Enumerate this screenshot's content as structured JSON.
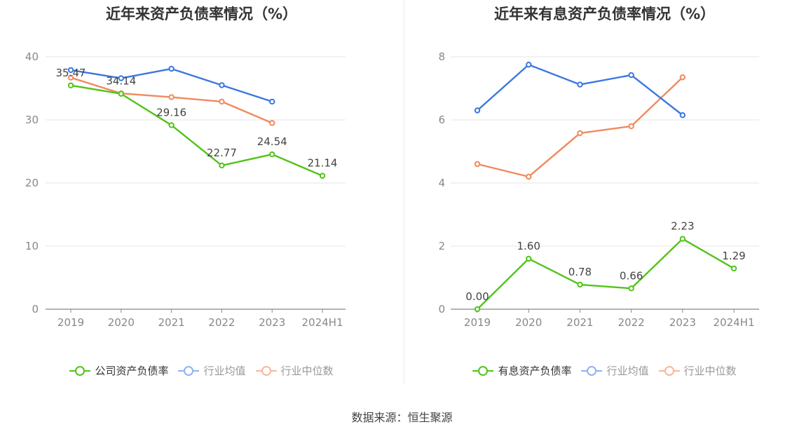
{
  "source": "数据来源：恒生聚源",
  "chart_data": [
    {
      "type": "line",
      "title": "近年来资产负债率情况（%）",
      "categories": [
        "2019",
        "2020",
        "2021",
        "2022",
        "2023",
        "2024H1"
      ],
      "ylim": [
        0,
        40
      ],
      "yticks": [
        0,
        10,
        20,
        30,
        40
      ],
      "grid": true,
      "legend_position": "bottom",
      "series": [
        {
          "name": "公司资产负债率",
          "color": "#52c41a",
          "values": [
            35.47,
            34.14,
            29.16,
            22.77,
            24.54,
            21.14
          ],
          "labels": [
            "35.47",
            "34.14",
            "29.16",
            "22.77",
            "24.54",
            "21.14"
          ],
          "show_labels": true,
          "faded_legend": false
        },
        {
          "name": "行业均值",
          "color": "#3b78e0",
          "legend_color": "#8fb2ee",
          "values": [
            37.9,
            36.6,
            38.1,
            35.5,
            32.9,
            null
          ],
          "show_labels": false,
          "faded_legend": true
        },
        {
          "name": "行业中位数",
          "color": "#f08a5d",
          "legend_color": "#f6b79b",
          "values": [
            36.7,
            34.2,
            33.6,
            32.9,
            29.5,
            null
          ],
          "show_labels": false,
          "faded_legend": true
        }
      ]
    },
    {
      "type": "line",
      "title": "近年来有息资产负债率情况（%）",
      "categories": [
        "2019",
        "2020",
        "2021",
        "2022",
        "2023",
        "2024H1"
      ],
      "ylim": [
        0,
        8
      ],
      "yticks": [
        0,
        2,
        4,
        6,
        8
      ],
      "grid": true,
      "legend_position": "bottom",
      "series": [
        {
          "name": "有息资产负债率",
          "color": "#52c41a",
          "values": [
            0.0,
            1.6,
            0.78,
            0.66,
            2.23,
            1.29
          ],
          "labels": [
            "0.00",
            "1.60",
            "0.78",
            "0.66",
            "2.23",
            "1.29"
          ],
          "show_labels": true,
          "faded_legend": false
        },
        {
          "name": "行业均值",
          "color": "#3b78e0",
          "legend_color": "#8fb2ee",
          "values": [
            6.3,
            7.75,
            7.12,
            7.42,
            6.15,
            null
          ],
          "show_labels": false,
          "faded_legend": true
        },
        {
          "name": "行业中位数",
          "color": "#f08a5d",
          "legend_color": "#f6b79b",
          "values": [
            4.6,
            4.2,
            5.58,
            5.8,
            7.35,
            null
          ],
          "show_labels": false,
          "faded_legend": true
        }
      ]
    }
  ]
}
